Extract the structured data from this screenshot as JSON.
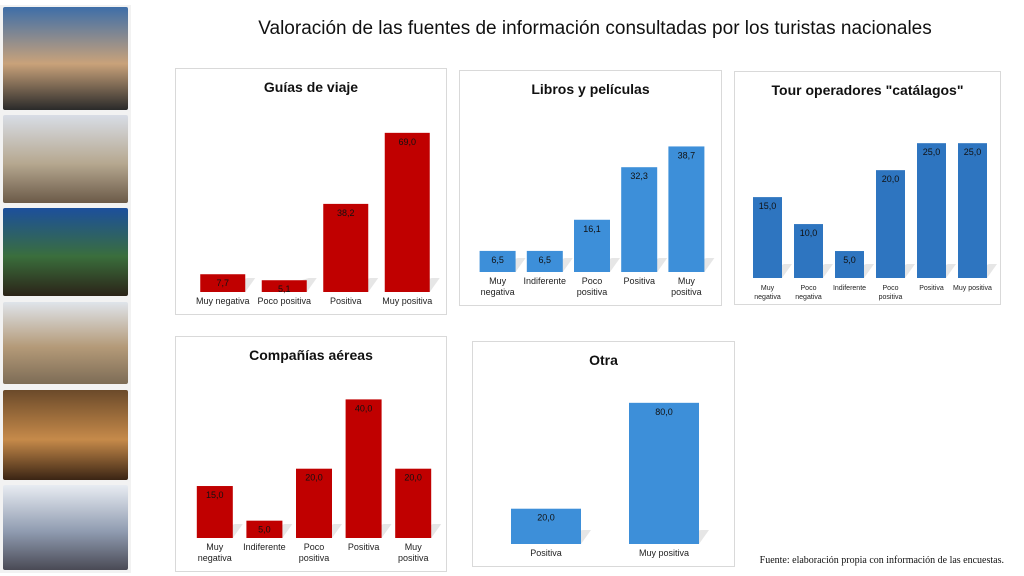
{
  "title": "Valoración de las fuentes de información consultadas por los turistas nacionales",
  "source": "Fuente: elaboración propia con información de las encuestas.",
  "photos": [
    {
      "name": "photo-couple-pool-icon",
      "colors": [
        "#3e6ea8",
        "#c9a27a",
        "#2a2a2a"
      ]
    },
    {
      "name": "photo-street-crowd-icon",
      "colors": [
        "#d8dde6",
        "#b6a890",
        "#6b5a48"
      ]
    },
    {
      "name": "photo-terrace-night-icon",
      "colors": [
        "#1c4f9c",
        "#3a6e3c",
        "#2b2318"
      ]
    },
    {
      "name": "photo-church-plaza-icon",
      "colors": [
        "#dfe4ea",
        "#b49a78",
        "#7d6c56"
      ]
    },
    {
      "name": "photo-hotel-room-icon",
      "colors": [
        "#6b4a2a",
        "#c68a4a",
        "#3a2414"
      ]
    },
    {
      "name": "photo-market-crowd-icon",
      "colors": [
        "#e8ecf2",
        "#8f9bb0",
        "#4a4a55"
      ]
    }
  ],
  "chart_data": [
    {
      "type": "bar",
      "title": "Guías de viaje",
      "color": "#c00000",
      "categories": [
        [
          "Muy negativa"
        ],
        [
          "Poco positiva"
        ],
        [
          "Positiva"
        ],
        [
          "Muy positiva"
        ]
      ],
      "values": [
        7.7,
        5.1,
        38.2,
        69.0
      ],
      "labels": [
        "7,7",
        "5,1",
        "38,2",
        "69,0"
      ]
    },
    {
      "type": "bar",
      "title": "Libros y películas",
      "color": "#3d8fd9",
      "categories": [
        [
          "Muy",
          "negativa"
        ],
        [
          "Indiferente"
        ],
        [
          "Poco",
          "positiva"
        ],
        [
          "Positiva"
        ],
        [
          "Muy",
          "positiva"
        ]
      ],
      "values": [
        6.5,
        6.5,
        16.1,
        32.3,
        38.7
      ],
      "labels": [
        "6,5",
        "6,5",
        "16,1",
        "32,3",
        "38,7"
      ]
    },
    {
      "type": "bar",
      "title": "Tour operadores \"catálagos\"",
      "color": "#2e75c0",
      "categories": [
        [
          "Muy",
          "negativa"
        ],
        [
          "Poco",
          "negativa"
        ],
        [
          "Indiferente"
        ],
        [
          "Poco",
          "positiva"
        ],
        [
          "Positiva"
        ],
        [
          "Muy positiva"
        ]
      ],
      "values": [
        15.0,
        10.0,
        5.0,
        20.0,
        25.0,
        25.0
      ],
      "labels": [
        "15,0",
        "10,0",
        "5,0",
        "20,0",
        "25,0",
        "25,0"
      ]
    },
    {
      "type": "bar",
      "title": "Compañías aéreas",
      "color": "#c00000",
      "categories": [
        [
          "Muy",
          "negativa"
        ],
        [
          "Indiferente"
        ],
        [
          "Poco",
          "positiva"
        ],
        [
          "Positiva"
        ],
        [
          "Muy",
          "positiva"
        ]
      ],
      "values": [
        15.0,
        5.0,
        20.0,
        40.0,
        20.0
      ],
      "labels": [
        "15,0",
        "5,0",
        "20,0",
        "40,0",
        "20,0"
      ]
    },
    {
      "type": "bar",
      "title": "Otra",
      "color": "#3d8fd9",
      "categories": [
        [
          "Positiva"
        ],
        [
          "Muy positiva"
        ]
      ],
      "values": [
        20.0,
        80.0
      ],
      "labels": [
        "20,0",
        "80,0"
      ]
    }
  ]
}
